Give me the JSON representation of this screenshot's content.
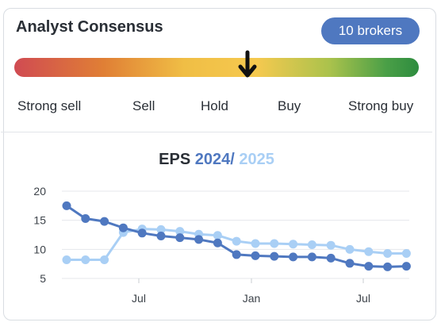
{
  "header": {
    "title": "Analyst Consensus",
    "brokers_label": "10 brokers"
  },
  "gauge": {
    "labels": [
      "Strong sell",
      "Sell",
      "Hold",
      "Buy",
      "Strong buy"
    ],
    "consensus_position": 0.58,
    "colors": [
      "#d04b52",
      "#e07f35",
      "#f0be45",
      "#aac24c",
      "#2e8c3f"
    ]
  },
  "eps": {
    "title_prefix": "EPS",
    "year_1": "2024",
    "separator": "/",
    "year_2": "2025",
    "colors": {
      "2024": "#4f78c0",
      "2025": "#a9cff5"
    }
  },
  "chart_data": {
    "type": "line",
    "title": "EPS 2024 / 2025",
    "x_ticks": [
      "Jul",
      "Jan",
      "Jul"
    ],
    "y_ticks": [
      5,
      10,
      15,
      20
    ],
    "ylim": [
      5,
      20
    ],
    "grid": true,
    "x": [
      0,
      1,
      2,
      3,
      4,
      5,
      6,
      7,
      8,
      9,
      10,
      11,
      12,
      13,
      14,
      15,
      16,
      17,
      18
    ],
    "series": [
      {
        "name": "2024",
        "values": [
          17.5,
          15.3,
          14.8,
          13.7,
          12.8,
          12.3,
          12.0,
          11.7,
          11.1,
          9.1,
          8.9,
          8.8,
          8.7,
          8.7,
          8.5,
          7.6,
          7.1,
          7.0,
          7.1
        ]
      },
      {
        "name": "2025",
        "values": [
          8.2,
          8.2,
          8.2,
          12.9,
          13.5,
          13.4,
          13.1,
          12.6,
          12.4,
          11.4,
          11.0,
          11.0,
          10.9,
          10.8,
          10.7,
          10.0,
          9.6,
          9.3,
          9.3
        ]
      }
    ]
  }
}
